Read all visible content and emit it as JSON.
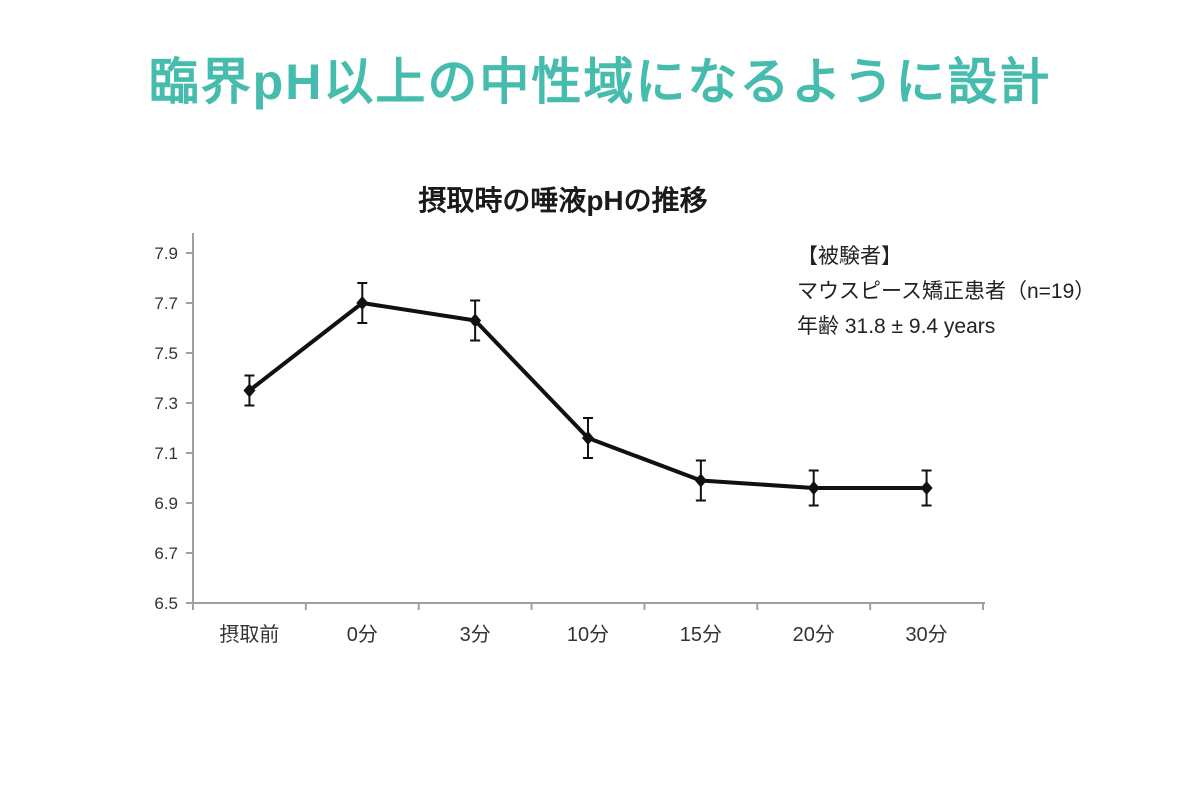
{
  "page": {
    "title": "臨界pH以上の中性域になるように設計",
    "title_color": "#45BCAD",
    "background": "#ffffff"
  },
  "chart_data": {
    "type": "line",
    "title": "摂取時の唾液pHの推移",
    "categories": [
      "摂取前",
      "0分",
      "3分",
      "10分",
      "15分",
      "20分",
      "30分"
    ],
    "series": [
      {
        "name": "唾液pH",
        "values": [
          7.35,
          7.7,
          7.63,
          7.16,
          6.99,
          6.96,
          6.96
        ],
        "errors": [
          0.06,
          0.08,
          0.08,
          0.08,
          0.08,
          0.07,
          0.07
        ],
        "color": "#111111",
        "marker": "diamond"
      }
    ],
    "xlabel": "",
    "ylabel": "",
    "ylim": [
      6.5,
      7.9
    ],
    "yticks": [
      6.5,
      6.7,
      6.9,
      7.1,
      7.3,
      7.5,
      7.7,
      7.9
    ],
    "ytick_decimals": 1,
    "grid": false,
    "legend_position": "none",
    "axis_color": "#a0a0a0",
    "tick_label_color": "#333333"
  },
  "annotation": {
    "line1": "【被験者】",
    "line2": "マウスピース矯正患者（n=19）",
    "line3": "年齢  31.8 ± 9.4 years"
  }
}
